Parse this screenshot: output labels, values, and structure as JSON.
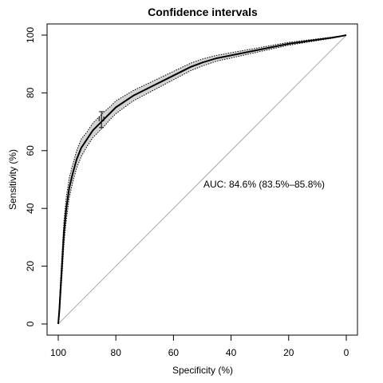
{
  "chart_data": {
    "type": "line",
    "title": "Confidence intervals",
    "xlabel": "Specificity (%)",
    "ylabel": "Sensitivity (%)",
    "xlim": [
      100,
      0
    ],
    "ylim": [
      0,
      100
    ],
    "x_reversed": true,
    "x_ticks": [
      100,
      80,
      60,
      40,
      20,
      0
    ],
    "y_ticks": [
      0,
      20,
      40,
      60,
      80,
      100
    ],
    "grid": false,
    "legend": "none",
    "annotation": "AUC: 84.6% (83.5%–85.8%)",
    "series": [
      {
        "name": "ROC curve",
        "x": [
          100,
          99.6,
          99.2,
          98.6,
          98.0,
          97.2,
          96.2,
          95.0,
          93.6,
          92.0,
          90.0,
          88.0,
          86.0,
          84.0,
          82.0,
          80.0,
          77.0,
          74.0,
          70.0,
          66.0,
          62.0,
          58.0,
          54.0,
          50.0,
          45.0,
          40.0,
          35.0,
          30.0,
          25.0,
          20.0,
          15.0,
          10.0,
          5.0,
          2.0,
          0
        ],
        "y": [
          0,
          5,
          12,
          22,
          32,
          40,
          47,
          52,
          57,
          61,
          64,
          67,
          69,
          71,
          73,
          75,
          77,
          79,
          81,
          83,
          85,
          87,
          89,
          90.5,
          92,
          93,
          94,
          95,
          96,
          97,
          97.7,
          98.4,
          99.1,
          99.6,
          100
        ]
      }
    ],
    "confidence_band": {
      "x": [
        100,
        99.6,
        99.2,
        98.6,
        98.0,
        97.2,
        96.2,
        95.0,
        93.6,
        92.0,
        90.0,
        88.0,
        86.0,
        84.0,
        82.0,
        80.0,
        77.0,
        74.0,
        70.0,
        66.0,
        62.0,
        58.0,
        54.0,
        50.0,
        45.0,
        40.0,
        35.0,
        30.0,
        25.0,
        20.0,
        15.0,
        10.0,
        5.0,
        2.0,
        0
      ],
      "lower": [
        0,
        3,
        9,
        18,
        28,
        36,
        43.5,
        49,
        54,
        58,
        61.5,
        64.5,
        66.5,
        68.5,
        70.8,
        72.8,
        75,
        77.2,
        79.3,
        81.4,
        83.5,
        85.6,
        87.7,
        89.3,
        91,
        92.1,
        93.2,
        94.3,
        95.4,
        96.5,
        97.3,
        98.1,
        98.9,
        99.5,
        100
      ],
      "upper": [
        0,
        7,
        15,
        26,
        36,
        44,
        50.5,
        55,
        60,
        64,
        66.5,
        69.5,
        71.5,
        73.5,
        75.2,
        77.2,
        79,
        80.8,
        82.7,
        84.6,
        86.5,
        88.4,
        90.3,
        91.7,
        93,
        93.9,
        94.8,
        95.7,
        96.6,
        97.5,
        98.1,
        98.7,
        99.3,
        99.7,
        100
      ]
    },
    "ci_marker": {
      "x": 85,
      "y": 71,
      "y_low": 68,
      "y_high": 73.5,
      "x_low": 84.2,
      "x_high": 85.8
    },
    "colors": {
      "band": "#d3d3d3",
      "curve": "#000000",
      "diagonal": "#a9a9a9",
      "ci_bounds": "#000000"
    }
  }
}
